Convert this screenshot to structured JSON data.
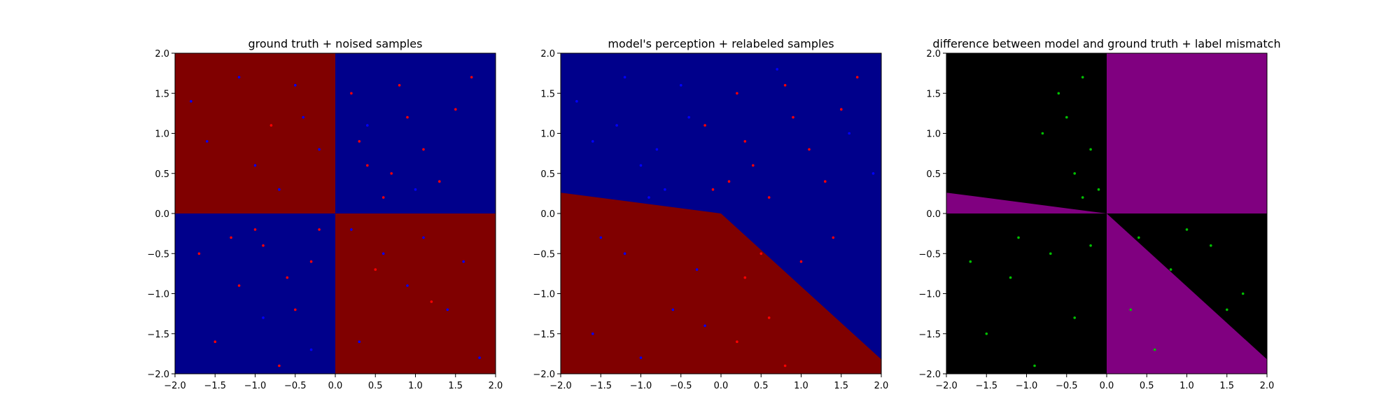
{
  "chart_data": [
    {
      "type": "scatter",
      "title": "ground truth + noised samples",
      "xlabel": "",
      "ylabel": "",
      "xlim": [
        -2.0,
        2.0
      ],
      "ylim": [
        -2.0,
        2.0
      ],
      "xticks": [
        "−2.0",
        "−1.5",
        "−1.0",
        "−0.5",
        "0.0",
        "0.5",
        "1.0",
        "1.5",
        "2.0"
      ],
      "yticks": [
        "−2.0",
        "−1.5",
        "−1.0",
        "−0.5",
        "0.0",
        "0.5",
        "1.0",
        "1.5",
        "2.0"
      ],
      "grid": false,
      "background_regions": [
        {
          "x": [
            -2.0,
            0.0
          ],
          "y": [
            0.0,
            2.0
          ],
          "color": "#800000"
        },
        {
          "x": [
            0.0,
            2.0
          ],
          "y": [
            0.0,
            2.0
          ],
          "color": "#00008b"
        },
        {
          "x": [
            -2.0,
            0.0
          ],
          "y": [
            -2.0,
            0.0
          ],
          "color": "#00008b"
        },
        {
          "x": [
            0.0,
            2.0
          ],
          "y": [
            -2.0,
            0.0
          ],
          "color": "#800000"
        }
      ],
      "series": [
        {
          "color": "#ff0000",
          "points": [
            [
              -0.9,
              -0.4
            ],
            [
              -0.5,
              -1.2
            ],
            [
              -1.2,
              -0.9
            ],
            [
              -0.3,
              -0.6
            ],
            [
              -1.5,
              -1.6
            ],
            [
              -0.7,
              -1.9
            ],
            [
              -0.2,
              -0.2
            ],
            [
              -1.0,
              -0.2
            ],
            [
              -1.7,
              -0.5
            ],
            [
              -0.6,
              -0.8
            ],
            [
              0.4,
              0.6
            ],
            [
              0.9,
              1.2
            ],
            [
              1.3,
              0.4
            ],
            [
              0.2,
              1.5
            ],
            [
              1.7,
              1.7
            ],
            [
              0.6,
              0.2
            ],
            [
              1.1,
              0.8
            ],
            [
              0.3,
              0.9
            ],
            [
              1.5,
              1.3
            ],
            [
              0.8,
              1.6
            ],
            [
              -0.8,
              1.1
            ],
            [
              0.5,
              -0.7
            ],
            [
              1.2,
              -1.1
            ],
            [
              -1.3,
              -0.3
            ],
            [
              0.7,
              0.5
            ]
          ]
        },
        {
          "color": "#0000ff",
          "points": [
            [
              -1.0,
              0.6
            ],
            [
              -0.4,
              1.2
            ],
            [
              -1.6,
              0.9
            ],
            [
              -0.7,
              0.3
            ],
            [
              -1.2,
              1.7
            ],
            [
              -0.2,
              0.8
            ],
            [
              -1.8,
              1.4
            ],
            [
              -0.5,
              1.6
            ],
            [
              0.6,
              -0.5
            ],
            [
              1.4,
              -1.2
            ],
            [
              0.3,
              -1.6
            ],
            [
              1.1,
              -0.3
            ],
            [
              1.8,
              -1.8
            ],
            [
              0.9,
              -0.9
            ],
            [
              0.2,
              -0.2
            ],
            [
              1.6,
              -0.6
            ],
            [
              -0.9,
              -1.3
            ],
            [
              0.4,
              1.1
            ],
            [
              -0.3,
              -1.7
            ],
            [
              1.0,
              0.3
            ]
          ]
        }
      ]
    },
    {
      "type": "scatter",
      "title": "model's perception + relabeled samples",
      "xlabel": "",
      "ylabel": "",
      "xlim": [
        -2.0,
        2.0
      ],
      "ylim": [
        -2.0,
        2.0
      ],
      "xticks": [
        "−2.0",
        "−1.5",
        "−1.0",
        "−0.5",
        "0.0",
        "0.5",
        "1.0",
        "1.5",
        "2.0"
      ],
      "yticks": [
        "−2.0",
        "−1.5",
        "−1.0",
        "−0.5",
        "0.0",
        "0.5",
        "1.0",
        "1.5",
        "2.0"
      ],
      "grid": false,
      "background_color": "#00008b",
      "decision_region": {
        "color": "#800000",
        "polygon": [
          [
            -2.0,
            0.26
          ],
          [
            0.0,
            0.0
          ],
          [
            2.0,
            -1.82
          ],
          [
            2.0,
            -2.0
          ],
          [
            -2.0,
            -2.0
          ]
        ]
      },
      "series": [
        {
          "color": "#ff0000",
          "points": [
            [
              0.3,
              -0.8
            ],
            [
              0.6,
              -1.3
            ],
            [
              0.2,
              -1.6
            ],
            [
              0.5,
              -0.5
            ],
            [
              0.8,
              -1.9
            ],
            [
              -0.1,
              0.3
            ],
            [
              0.4,
              0.6
            ],
            [
              0.9,
              1.2
            ],
            [
              1.3,
              0.4
            ],
            [
              0.2,
              1.5
            ],
            [
              1.7,
              1.7
            ],
            [
              0.6,
              0.2
            ],
            [
              1.1,
              0.8
            ],
            [
              0.3,
              0.9
            ],
            [
              1.5,
              1.3
            ],
            [
              0.8,
              1.6
            ],
            [
              -0.2,
              1.1
            ],
            [
              1.4,
              -0.3
            ],
            [
              1.0,
              -0.6
            ],
            [
              0.1,
              0.4
            ]
          ]
        },
        {
          "color": "#0000ff",
          "points": [
            [
              -1.0,
              0.6
            ],
            [
              -0.4,
              1.2
            ],
            [
              -1.6,
              0.9
            ],
            [
              -0.7,
              0.3
            ],
            [
              -1.2,
              1.7
            ],
            [
              -0.8,
              0.8
            ],
            [
              -1.8,
              1.4
            ],
            [
              -0.5,
              1.6
            ],
            [
              -1.2,
              -0.5
            ],
            [
              -0.6,
              -1.2
            ],
            [
              -1.6,
              -1.5
            ],
            [
              -0.3,
              -0.7
            ],
            [
              -1.0,
              -1.8
            ],
            [
              -1.5,
              -0.3
            ],
            [
              -0.2,
              -1.4
            ],
            [
              1.6,
              1.0
            ],
            [
              1.9,
              0.5
            ],
            [
              0.7,
              1.8
            ],
            [
              -0.9,
              0.2
            ],
            [
              -1.3,
              1.1
            ]
          ]
        }
      ]
    },
    {
      "type": "scatter",
      "title": "difference between model and ground truth + label mismatch",
      "xlabel": "",
      "ylabel": "",
      "xlim": [
        -2.0,
        2.0
      ],
      "ylim": [
        -2.0,
        2.0
      ],
      "xticks": [
        "−2.0",
        "−1.5",
        "−1.0",
        "−0.5",
        "0.0",
        "0.5",
        "1.0",
        "1.5",
        "2.0"
      ],
      "yticks": [
        "−2.0",
        "−1.5",
        "−1.0",
        "−0.5",
        "0.0",
        "0.5",
        "1.0",
        "1.5",
        "2.0"
      ],
      "grid": false,
      "background_color": "#000000",
      "difference_regions": [
        {
          "color": "#800080",
          "polygon": [
            [
              0.0,
              0.0
            ],
            [
              2.0,
              0.0
            ],
            [
              2.0,
              2.0
            ],
            [
              0.0,
              2.0
            ]
          ]
        },
        {
          "color": "#800080",
          "polygon": [
            [
              -2.0,
              0.26
            ],
            [
              0.0,
              0.0
            ],
            [
              -2.0,
              0.0
            ]
          ]
        },
        {
          "color": "#800080",
          "polygon": [
            [
              0.0,
              0.0
            ],
            [
              2.0,
              -1.82
            ],
            [
              2.0,
              -2.0
            ],
            [
              0.0,
              -2.0
            ]
          ]
        }
      ],
      "series": [
        {
          "color": "#00c000",
          "points": [
            [
              -0.3,
              1.7
            ],
            [
              -0.5,
              1.2
            ],
            [
              -0.2,
              0.8
            ],
            [
              -0.4,
              0.5
            ],
            [
              -0.6,
              1.5
            ],
            [
              -0.1,
              0.3
            ],
            [
              -0.8,
              1.0
            ],
            [
              -0.3,
              0.2
            ],
            [
              -0.7,
              -0.5
            ],
            [
              -1.2,
              -0.8
            ],
            [
              -0.4,
              -1.3
            ],
            [
              -1.5,
              -1.5
            ],
            [
              -0.9,
              -1.9
            ],
            [
              -1.7,
              -0.6
            ],
            [
              -0.2,
              -0.4
            ],
            [
              0.4,
              -0.3
            ],
            [
              0.8,
              -0.7
            ],
            [
              1.3,
              -0.4
            ],
            [
              1.7,
              -1.0
            ],
            [
              0.3,
              -1.2
            ],
            [
              0.6,
              -1.7
            ],
            [
              1.5,
              -1.2
            ],
            [
              1.0,
              -0.2
            ],
            [
              -1.1,
              -0.3
            ]
          ]
        }
      ]
    }
  ]
}
